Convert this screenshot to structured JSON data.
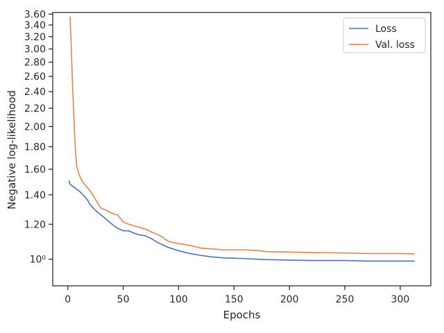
{
  "chart_data": {
    "type": "line",
    "title": "",
    "xlabel": "Epochs",
    "ylabel": "Negative log-likelihood",
    "x_ticks": [
      0,
      50,
      100,
      150,
      200,
      250,
      300
    ],
    "y_ticks": [
      1.0,
      1.2,
      1.4,
      1.6,
      1.8,
      2.0,
      2.2,
      2.4,
      2.6,
      2.8,
      3.0,
      3.2,
      3.4,
      3.6
    ],
    "y_tick_labels": [
      "10⁰",
      "1.20",
      "1.40",
      "1.60",
      "1.80",
      "2.00",
      "2.20",
      "2.40",
      "2.60",
      "2.80",
      "3.00",
      "3.20",
      "3.40",
      "3.60"
    ],
    "xlim": [
      -13.6,
      327.6
    ],
    "ylim": [
      0.87,
      3.63
    ],
    "y_scale": "log",
    "grid": false,
    "legend_position": "top-right",
    "series": [
      {
        "name": "Loss",
        "color": "#4c72b0",
        "points": [
          [
            1,
            1.51
          ],
          [
            2,
            1.48
          ],
          [
            5,
            1.46
          ],
          [
            10,
            1.43
          ],
          [
            15,
            1.39
          ],
          [
            18,
            1.36
          ],
          [
            20,
            1.33
          ],
          [
            25,
            1.29
          ],
          [
            30,
            1.26
          ],
          [
            35,
            1.23
          ],
          [
            40,
            1.2
          ],
          [
            45,
            1.175
          ],
          [
            50,
            1.16
          ],
          [
            55,
            1.16
          ],
          [
            60,
            1.145
          ],
          [
            65,
            1.135
          ],
          [
            70,
            1.13
          ],
          [
            75,
            1.115
          ],
          [
            80,
            1.095
          ],
          [
            85,
            1.08
          ],
          [
            90,
            1.065
          ],
          [
            95,
            1.055
          ],
          [
            100,
            1.045
          ],
          [
            110,
            1.03
          ],
          [
            120,
            1.02
          ],
          [
            130,
            1.012
          ],
          [
            140,
            1.007
          ],
          [
            150,
            1.005
          ],
          [
            160,
            1.003
          ],
          [
            170,
            1.0
          ],
          [
            180,
            0.998
          ],
          [
            200,
            0.995
          ],
          [
            220,
            0.993
          ],
          [
            250,
            0.993
          ],
          [
            270,
            0.99
          ],
          [
            290,
            0.99
          ],
          [
            300,
            0.99
          ],
          [
            313,
            0.99
          ]
        ]
      },
      {
        "name": "Val. loss",
        "color": "#dd8452",
        "points": [
          [
            2,
            3.55
          ],
          [
            3,
            3.1
          ],
          [
            4,
            2.6
          ],
          [
            5,
            2.25
          ],
          [
            6,
            1.95
          ],
          [
            7,
            1.75
          ],
          [
            8,
            1.63
          ],
          [
            10,
            1.56
          ],
          [
            12,
            1.52
          ],
          [
            15,
            1.48
          ],
          [
            20,
            1.43
          ],
          [
            24,
            1.38
          ],
          [
            27,
            1.34
          ],
          [
            30,
            1.305
          ],
          [
            35,
            1.29
          ],
          [
            40,
            1.27
          ],
          [
            45,
            1.26
          ],
          [
            50,
            1.215
          ],
          [
            55,
            1.2
          ],
          [
            60,
            1.19
          ],
          [
            65,
            1.18
          ],
          [
            70,
            1.17
          ],
          [
            75,
            1.155
          ],
          [
            80,
            1.14
          ],
          [
            85,
            1.125
          ],
          [
            90,
            1.1
          ],
          [
            95,
            1.09
          ],
          [
            100,
            1.085
          ],
          [
            110,
            1.075
          ],
          [
            120,
            1.06
          ],
          [
            130,
            1.055
          ],
          [
            140,
            1.05
          ],
          [
            150,
            1.05
          ],
          [
            160,
            1.05
          ],
          [
            170,
            1.047
          ],
          [
            180,
            1.04
          ],
          [
            200,
            1.038
          ],
          [
            220,
            1.035
          ],
          [
            250,
            1.033
          ],
          [
            270,
            1.03
          ],
          [
            290,
            1.03
          ],
          [
            300,
            1.03
          ],
          [
            313,
            1.028
          ]
        ]
      }
    ]
  }
}
